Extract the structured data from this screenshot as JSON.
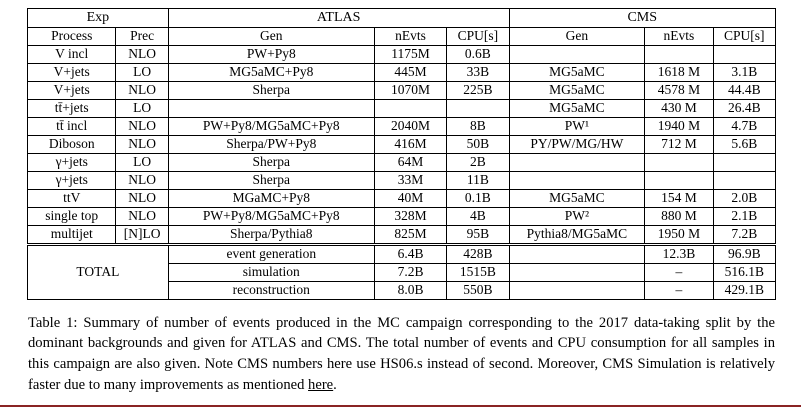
{
  "table": {
    "header_groups": [
      {
        "label": "Exp",
        "colspan": 2
      },
      {
        "label": "ATLAS",
        "colspan": 3
      },
      {
        "label": "CMS",
        "colspan": 3
      }
    ],
    "columns": [
      "Process",
      "Prec",
      "Gen",
      "nEvts",
      "CPU[s]",
      "Gen",
      "nEvts",
      "CPU[s]"
    ],
    "rows": [
      [
        "V incl",
        "NLO",
        "PW+Py8",
        "1175M",
        "0.6B",
        "",
        "",
        ""
      ],
      [
        "V+jets",
        "LO",
        "MG5aMC+Py8",
        "445M",
        "33B",
        "MG5aMC",
        "1618 M",
        "3.1B"
      ],
      [
        "V+jets",
        "NLO",
        "Sherpa",
        "1070M",
        "225B",
        "MG5aMC",
        "4578 M",
        "44.4B"
      ],
      [
        "tt̄+jets",
        "LO",
        "",
        "",
        "",
        "MG5aMC",
        "430 M",
        "26.4B"
      ],
      [
        "tt̄ incl",
        "NLO",
        "PW+Py8/MG5aMC+Py8",
        "2040M",
        "8B",
        "PW¹",
        "1940 M",
        "4.7B"
      ],
      [
        "Diboson",
        "NLO",
        "Sherpa/PW+Py8",
        "416M",
        "50B",
        "PY/PW/MG/HW",
        "712 M",
        "5.6B"
      ],
      [
        "γ+jets",
        "LO",
        "Sherpa",
        "64M",
        "2B",
        "",
        "",
        ""
      ],
      [
        "γ+jets",
        "NLO",
        "Sherpa",
        "33M",
        "11B",
        "",
        "",
        ""
      ],
      [
        "ttV",
        "NLO",
        "MGaMC+Py8",
        "40M",
        "0.1B",
        "MG5aMC",
        "154 M",
        "2.0B"
      ],
      [
        "single top",
        "NLO",
        "PW+Py8/MG5aMC+Py8",
        "328M",
        "4B",
        "PW²",
        "880 M",
        "2.1B"
      ],
      [
        "multijet",
        "[N]LO",
        "Sherpa/Pythia8",
        "825M",
        "95B",
        "Pythia8/MG5aMC",
        "1950 M",
        "7.2B"
      ]
    ],
    "total_label": "TOTAL",
    "total_rows": [
      [
        "event generation",
        "6.4B",
        "428B",
        "",
        "12.3B",
        "96.9B"
      ],
      [
        "simulation",
        "7.2B",
        "1515B",
        "",
        "–",
        "516.1B"
      ],
      [
        "reconstruction",
        "8.0B",
        "550B",
        "",
        "–",
        "429.1B"
      ]
    ]
  },
  "caption": {
    "text_before_link": "Table 1: Summary of number of events produced in the MC campaign corresponding to the 2017 data-taking split by the dominant backgrounds and given for ATLAS and CMS. The total number of events and CPU consumption for all samples in this campaign are also given. Note CMS numbers here use HS06.s instead of second. Moreover, CMS Simulation is relatively faster due to many improvements as mentioned ",
    "link_text": "here",
    "text_after_link": "."
  },
  "colors": {
    "bottom_rule": "#8a2424"
  }
}
